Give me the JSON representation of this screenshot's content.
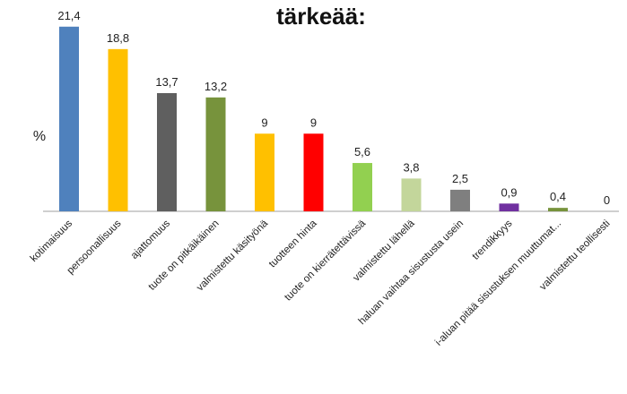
{
  "chart_data": {
    "type": "bar",
    "title": "tärkeää:",
    "ylabel": "%",
    "xlabel": "",
    "ylim": [
      0,
      22
    ],
    "grid": false,
    "legend": "none",
    "categories": [
      "kotimaisuus",
      "persoonallisuus",
      "ajattomuus",
      "tuote on pitkäikäinen",
      "valmistettu käsityönä",
      "tuotteen hinta",
      "tuote on kierrätettävissä",
      "valmistettu lähellä",
      "haluan vaihtaa sisustusta usein",
      "trendikkyys",
      "i-aluan pitää sisustuksen muuttumat...",
      "valmistettu teollisesti"
    ],
    "values": [
      21.4,
      18.8,
      13.7,
      13.2,
      9,
      9,
      5.6,
      3.8,
      2.5,
      0.9,
      0.4,
      0
    ],
    "value_labels": [
      "21,4",
      "18,8",
      "13,7",
      "13,2",
      "9",
      "9",
      "5,6",
      "3,8",
      "2,5",
      "0,9",
      "0,4",
      "0"
    ],
    "colors": [
      "#4F81BD",
      "#FFC000",
      "#5F5F5F",
      "#77933C",
      "#FFC000",
      "#FF0000",
      "#92D050",
      "#C3D69B",
      "#7F7F7F",
      "#7030A0",
      "#77933C",
      "#FFFFFF"
    ]
  }
}
